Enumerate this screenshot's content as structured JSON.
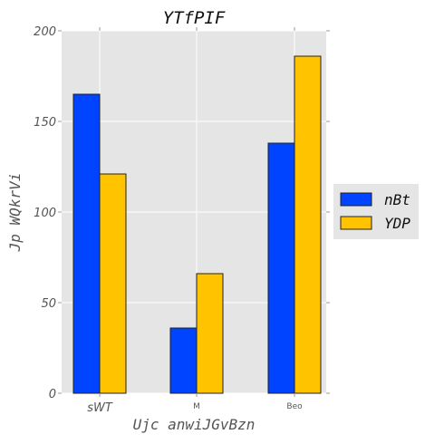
{
  "chart_data": {
    "type": "bar",
    "title": "YTfPIF",
    "xlabel": "Ujc anwiJGvBzn",
    "ylabel": "Jp WQkrVi",
    "categories": [
      "sWT",
      "M",
      "Beo"
    ],
    "ylim": [
      0,
      200
    ],
    "yticks": [
      0,
      50,
      100,
      150,
      200
    ],
    "grid": true,
    "legend_position": "right",
    "series": [
      {
        "name": "nBt",
        "values": [
          165,
          36,
          138
        ],
        "color": "#0044ff"
      },
      {
        "name": "YDP",
        "values": [
          121,
          66,
          186
        ],
        "color": "#ffc300"
      }
    ]
  }
}
